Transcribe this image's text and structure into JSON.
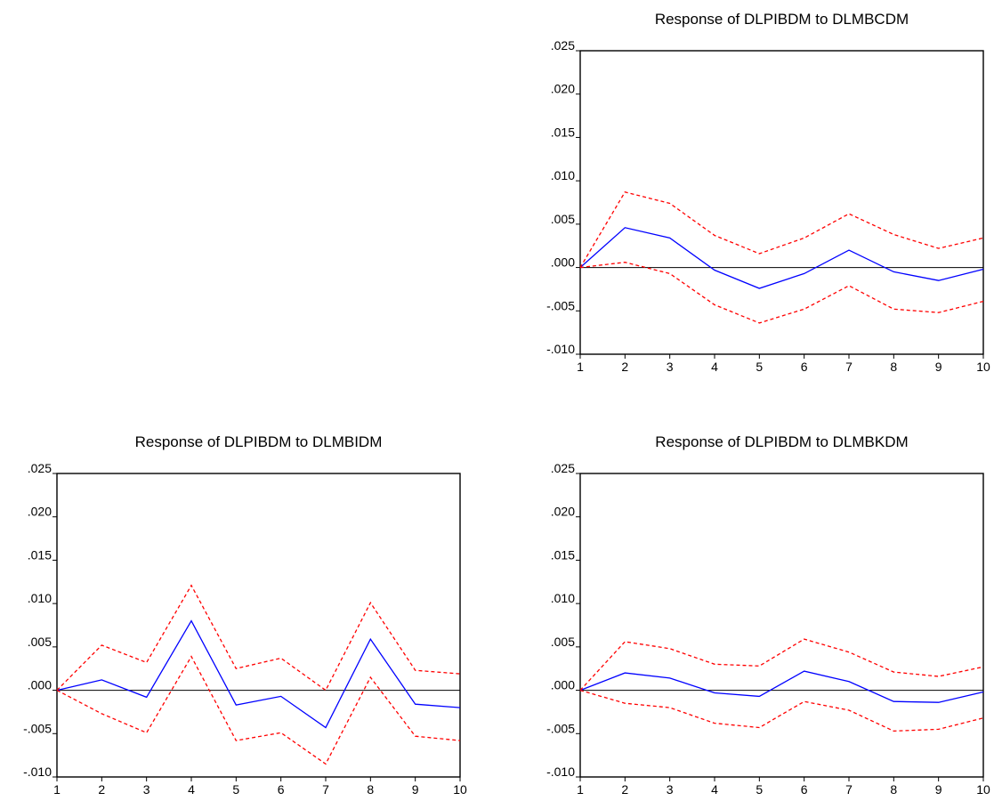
{
  "chart_data": [
    {
      "type": "line",
      "title": "Response of DLPIBDM to DLMBCDM",
      "x": [
        1,
        2,
        3,
        4,
        5,
        6,
        7,
        8,
        9,
        10
      ],
      "ylim": [
        -0.01,
        0.025
      ],
      "y_ticks": [
        ".025",
        ".020",
        ".015",
        ".010",
        ".005",
        ".000",
        "-.005",
        "-.010"
      ],
      "x_ticks": [
        "1",
        "2",
        "3",
        "4",
        "5",
        "6",
        "7",
        "8",
        "9",
        "10"
      ],
      "zero_line": true,
      "series": [
        {
          "values": [
            0.0,
            0.0046,
            0.0034,
            -0.0003,
            -0.0024,
            -0.0007,
            0.002,
            -0.0005,
            -0.0015,
            -0.0002
          ],
          "color": "#0000ff",
          "style": "solid"
        },
        {
          "values": [
            0.0,
            0.0087,
            0.0074,
            0.0037,
            0.0016,
            0.0034,
            0.0062,
            0.0038,
            0.0022,
            0.0034
          ],
          "color": "#ff0000",
          "style": "dashed"
        },
        {
          "values": [
            0.0,
            0.0006,
            -0.0007,
            -0.0043,
            -0.0064,
            -0.0048,
            -0.0021,
            -0.0048,
            -0.0052,
            -0.0039
          ],
          "color": "#ff0000",
          "style": "dashed"
        }
      ]
    },
    {
      "type": "line",
      "title": "Response of DLPIBDM to DLMBIDM",
      "x": [
        1,
        2,
        3,
        4,
        5,
        6,
        7,
        8,
        9,
        10
      ],
      "ylim": [
        -0.01,
        0.025
      ],
      "y_ticks": [
        ".025",
        ".020",
        ".015",
        ".010",
        ".005",
        ".000",
        "-.005",
        "-.010"
      ],
      "x_ticks": [
        "1",
        "2",
        "3",
        "4",
        "5",
        "6",
        "7",
        "8",
        "9",
        "10"
      ],
      "zero_line": true,
      "series": [
        {
          "values": [
            0.0,
            0.0012,
            -0.0008,
            0.008,
            -0.0017,
            -0.0007,
            -0.0043,
            0.0059,
            -0.0016,
            -0.002
          ],
          "color": "#0000ff",
          "style": "solid"
        },
        {
          "values": [
            0.0,
            0.0052,
            0.0032,
            0.0121,
            0.0025,
            0.0037,
            0.0,
            0.0101,
            0.0023,
            0.0019
          ],
          "color": "#ff0000",
          "style": "dashed"
        },
        {
          "values": [
            0.0,
            -0.0027,
            -0.0049,
            0.0039,
            -0.0058,
            -0.0049,
            -0.0085,
            0.0015,
            -0.0053,
            -0.0058
          ],
          "color": "#ff0000",
          "style": "dashed"
        }
      ]
    },
    {
      "type": "line",
      "title": "Response of DLPIBDM to DLMBKDM",
      "x": [
        1,
        2,
        3,
        4,
        5,
        6,
        7,
        8,
        9,
        10
      ],
      "ylim": [
        -0.01,
        0.025
      ],
      "y_ticks": [
        ".025",
        ".020",
        ".015",
        ".010",
        ".005",
        ".000",
        "-.005",
        "-.010"
      ],
      "x_ticks": [
        "1",
        "2",
        "3",
        "4",
        "5",
        "6",
        "7",
        "8",
        "9",
        "10"
      ],
      "zero_line": true,
      "series": [
        {
          "values": [
            0.0,
            0.002,
            0.0014,
            -0.0003,
            -0.0007,
            0.0022,
            0.001,
            -0.0013,
            -0.0014,
            -0.0002
          ],
          "color": "#0000ff",
          "style": "solid"
        },
        {
          "values": [
            0.0,
            0.0056,
            0.0048,
            0.003,
            0.0028,
            0.0059,
            0.0044,
            0.0021,
            0.0016,
            0.0027
          ],
          "color": "#ff0000",
          "style": "dashed"
        },
        {
          "values": [
            0.0,
            -0.0015,
            -0.002,
            -0.0038,
            -0.0043,
            -0.0013,
            -0.0023,
            -0.0047,
            -0.0045,
            -0.0032
          ],
          "color": "#ff0000",
          "style": "dashed"
        }
      ]
    }
  ]
}
